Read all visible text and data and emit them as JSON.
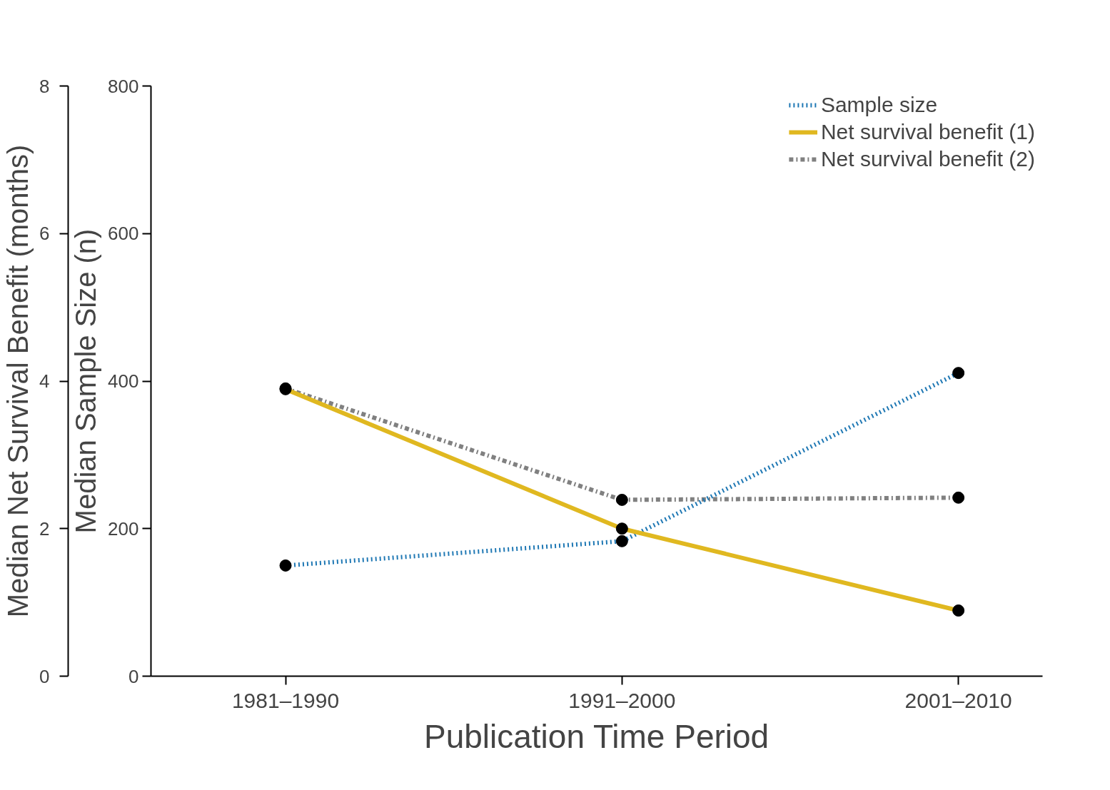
{
  "chart_data": {
    "type": "line",
    "xlabel": "Publication Time Period",
    "ylabel": "Median Sample Size (n)",
    "y2label": "Median Net Survival Benefit (months)",
    "categories": [
      "1981–1990",
      "1991–2000",
      "2001–2010"
    ],
    "series": [
      {
        "name": "Sample size",
        "color": "#1f78b4",
        "values": [
          150,
          183,
          411
        ],
        "line_style": "dotted"
      },
      {
        "name": "Net survival benefit (1)",
        "color": "#e0b820",
        "values": [
          3.89,
          2.0,
          0.89
        ],
        "axis": "y2",
        "line_style": "solid"
      },
      {
        "name": "Net survival benefit (2)",
        "color": "#808080",
        "values": [
          3.9,
          2.39,
          2.42
        ],
        "axis": "y2",
        "line_style": "dashdot"
      }
    ],
    "ylim": [
      0,
      800
    ],
    "yticks": [
      0,
      200,
      400,
      600,
      800
    ],
    "y2lim": [
      0,
      8
    ],
    "y2ticks": [
      0,
      2,
      4,
      6,
      8
    ],
    "marker": "circle",
    "legend": "top right",
    "grid": false
  }
}
